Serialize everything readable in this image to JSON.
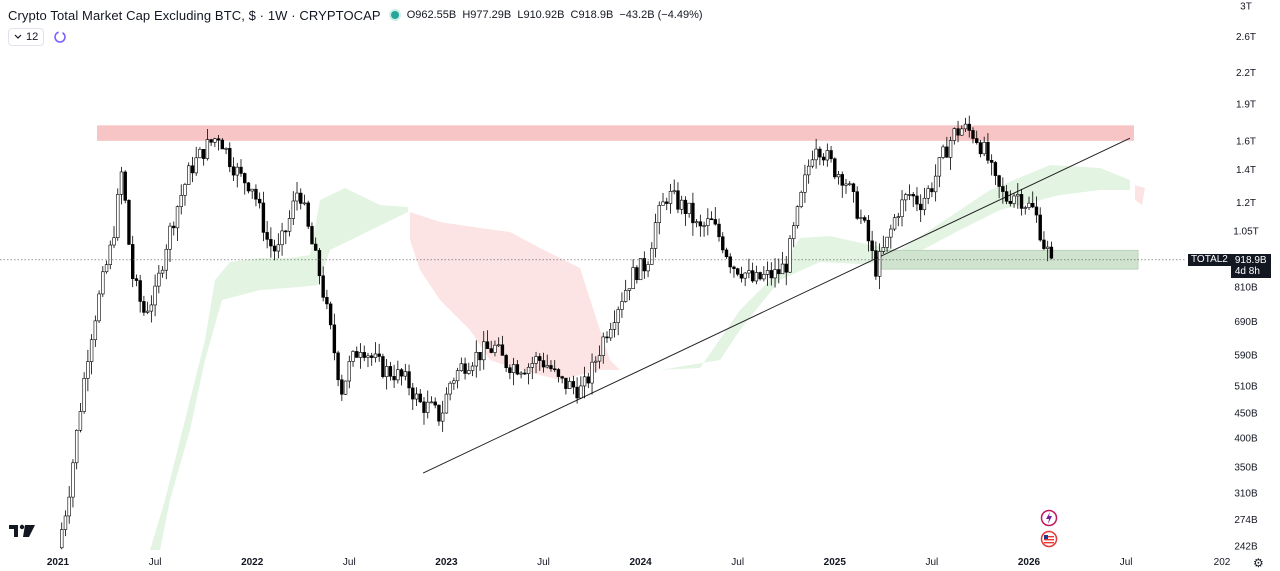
{
  "header": {
    "symbol_title": "Crypto Total Market Cap Excluding BTC, $ · 1W · CRYPTOCAP",
    "open": "O962.55B",
    "high": "H977.29B",
    "low": "L910.92B",
    "close": "C918.9B",
    "change": "−43.2B (−4.49%)",
    "status_color": "#26a69a"
  },
  "toolbar": {
    "indicators_count": "12",
    "collapse_icon": "chevron-down-icon",
    "sync_icon": "cycle-icon"
  },
  "price_tag": {
    "ticker": "TOTAL2",
    "price": "918.9B",
    "countdown": "4d 8h"
  },
  "colors": {
    "up_candle": "#ffffff",
    "down_candle": "#000000",
    "resistance_zone": "#f7c5c5",
    "support_zone": "#cfe3cf",
    "cloud_bull": "#e3f4e3",
    "cloud_bear": "#fde4e4"
  },
  "chart_data": {
    "type": "candlestick",
    "scale": "log",
    "title": "Crypto Total Market Cap Excluding BTC",
    "x_tick_labels": [
      "2021",
      "Jul",
      "2022",
      "Jul",
      "2023",
      "Jul",
      "2024",
      "Jul",
      "2025",
      "Jul",
      "2026",
      "Jul",
      "202"
    ],
    "y_tick_labels": [
      "3T",
      "2.6T",
      "2.2T",
      "1.9T",
      "1.6T",
      "1.4T",
      "1.2T",
      "1.05T",
      "810B",
      "690B",
      "590B",
      "510B",
      "450B",
      "400B",
      "350B",
      "310B",
      "274B",
      "242B"
    ],
    "y_ticks_values": [
      3000,
      2600,
      2200,
      1900,
      1600,
      1400,
      1200,
      1050,
      810,
      690,
      590,
      510,
      450,
      400,
      350,
      310,
      274,
      242
    ],
    "current_price_B": 918.9,
    "series": [
      {
        "name": "TOTAL2",
        "close_path_B": [
          [
            2021.0,
            240
          ],
          [
            2021.05,
            300
          ],
          [
            2021.1,
            420
          ],
          [
            2021.16,
            620
          ],
          [
            2021.22,
            800
          ],
          [
            2021.28,
            1000
          ],
          [
            2021.33,
            1400
          ],
          [
            2021.38,
            860
          ],
          [
            2021.44,
            720
          ],
          [
            2021.5,
            780
          ],
          [
            2021.56,
            1000
          ],
          [
            2021.62,
            1200
          ],
          [
            2021.68,
            1400
          ],
          [
            2021.76,
            1550
          ],
          [
            2021.83,
            1650
          ],
          [
            2021.88,
            1480
          ],
          [
            2021.94,
            1350
          ],
          [
            2022.0,
            1300
          ],
          [
            2022.04,
            1150
          ],
          [
            2022.08,
            1000
          ],
          [
            2022.13,
            950
          ],
          [
            2022.19,
            1100
          ],
          [
            2022.24,
            1300
          ],
          [
            2022.29,
            1050
          ],
          [
            2022.35,
            850
          ],
          [
            2022.41,
            640
          ],
          [
            2022.46,
            500
          ],
          [
            2022.5,
            560
          ],
          [
            2022.56,
            620
          ],
          [
            2022.62,
            580
          ],
          [
            2022.68,
            550
          ],
          [
            2022.74,
            540
          ],
          [
            2022.8,
            520
          ],
          [
            2022.86,
            470
          ],
          [
            2022.92,
            460
          ],
          [
            2022.97,
            440
          ],
          [
            2023.02,
            520
          ],
          [
            2023.08,
            560
          ],
          [
            2023.13,
            580
          ],
          [
            2023.19,
            600
          ],
          [
            2023.25,
            610
          ],
          [
            2023.3,
            570
          ],
          [
            2023.36,
            560
          ],
          [
            2023.42,
            560
          ],
          [
            2023.47,
            580
          ],
          [
            2023.53,
            560
          ],
          [
            2023.58,
            520
          ],
          [
            2023.64,
            510
          ],
          [
            2023.7,
            500
          ],
          [
            2023.75,
            550
          ],
          [
            2023.81,
            640
          ],
          [
            2023.86,
            710
          ],
          [
            2023.92,
            800
          ],
          [
            2023.97,
            870
          ],
          [
            2024.03,
            900
          ],
          [
            2024.08,
            1100
          ],
          [
            2024.14,
            1250
          ],
          [
            2024.19,
            1200
          ],
          [
            2024.25,
            1150
          ],
          [
            2024.3,
            1050
          ],
          [
            2024.36,
            1100
          ],
          [
            2024.42,
            1000
          ],
          [
            2024.47,
            900
          ],
          [
            2024.53,
            870
          ],
          [
            2024.58,
            830
          ],
          [
            2024.64,
            850
          ],
          [
            2024.7,
            860
          ],
          [
            2024.75,
            900
          ],
          [
            2024.8,
            1100
          ],
          [
            2024.86,
            1400
          ],
          [
            2024.9,
            1600
          ],
          [
            2024.95,
            1500
          ],
          [
            2025.0,
            1400
          ],
          [
            2025.05,
            1350
          ],
          [
            2025.1,
            1200
          ],
          [
            2025.16,
            1050
          ],
          [
            2025.21,
            880
          ],
          [
            2025.27,
            1000
          ],
          [
            2025.32,
            1150
          ],
          [
            2025.38,
            1250
          ],
          [
            2025.44,
            1200
          ],
          [
            2025.5,
            1300
          ],
          [
            2025.56,
            1500
          ],
          [
            2025.61,
            1650
          ],
          [
            2025.66,
            1700
          ],
          [
            2025.72,
            1650
          ],
          [
            2025.78,
            1500
          ],
          [
            2025.83,
            1300
          ],
          [
            2025.88,
            1220
          ],
          [
            2025.93,
            1260
          ],
          [
            2025.98,
            1200
          ],
          [
            2026.03,
            1150
          ],
          [
            2026.08,
            980
          ],
          [
            2026.12,
            918.9
          ]
        ]
      }
    ],
    "annotations": {
      "resistance_zone_B": [
        1600,
        1720
      ],
      "support_zone_B": [
        880,
        960
      ],
      "trendline_B": [
        [
          2022.88,
          340
        ],
        [
          2026.52,
          1620
        ]
      ]
    },
    "grid": false,
    "legend": "none"
  }
}
